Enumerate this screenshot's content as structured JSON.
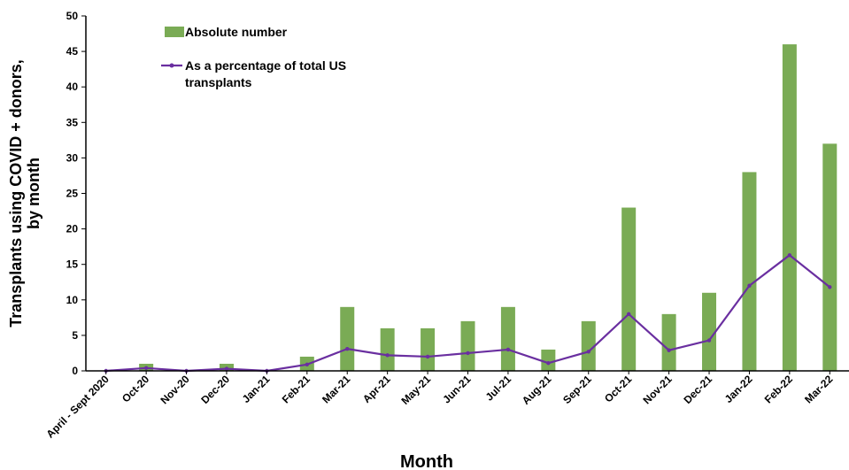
{
  "chart_data": {
    "type": "bar",
    "categories": [
      "April - Sept 2020",
      "Oct-20",
      "Nov-20",
      "Dec-20",
      "Jan-21",
      "Feb-21",
      "Mar-21",
      "Apr-21",
      "May-21",
      "Jun-21",
      "Jul-21",
      "Aug-21",
      "Sep-21",
      "Oct-21",
      "Nov-21",
      "Dec-21",
      "Jan-22",
      "Feb-22",
      "Mar-22"
    ],
    "series": [
      {
        "name": "Absolute number",
        "type": "bar",
        "color": "#7aab55",
        "values": [
          0,
          1,
          0,
          1,
          0,
          2,
          9,
          6,
          6,
          7,
          9,
          3,
          7,
          23,
          8,
          11,
          28,
          46,
          32
        ]
      },
      {
        "name": "As a percentage of total US transplants",
        "type": "line",
        "color": "#6a2fa0",
        "values": [
          0,
          0.4,
          0,
          0.3,
          0,
          0.9,
          3.1,
          2.2,
          2.0,
          2.5,
          3.0,
          1.1,
          2.7,
          8.0,
          2.9,
          4.3,
          12.0,
          16.3,
          11.8
        ]
      }
    ],
    "ylabel": "Transplants using COVID + donors, by month",
    "xlabel": "Month",
    "ylim": [
      0,
      50
    ],
    "yticks": [
      0,
      5,
      10,
      15,
      20,
      25,
      30,
      35,
      40,
      45,
      50
    ],
    "grid": false,
    "legend_position": "top-left"
  }
}
